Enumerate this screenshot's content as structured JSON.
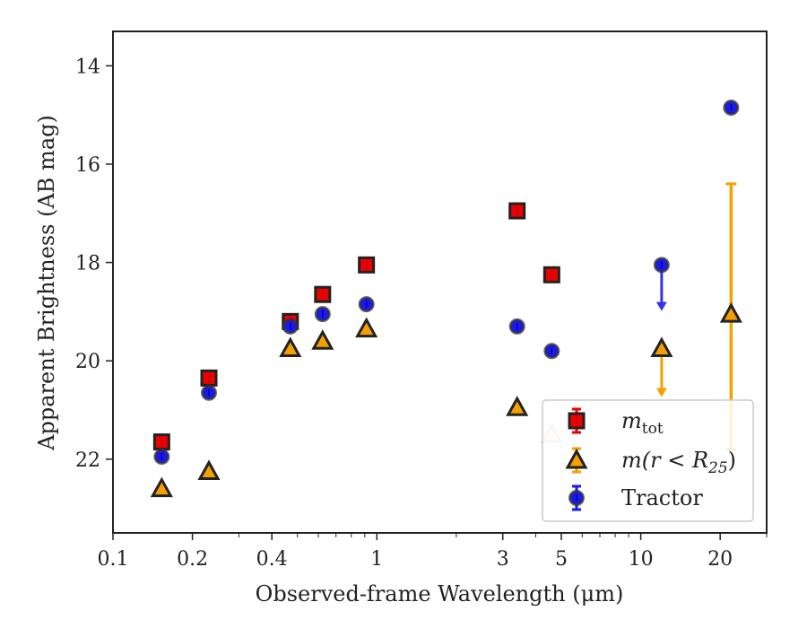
{
  "chart_data": {
    "type": "scatter",
    "xlabel": "Observed-frame Wavelength (μm)",
    "ylabel": "Apparent Brightness (AB mag)",
    "x_scale": "log",
    "xlim": [
      0.1,
      30
    ],
    "ylim": [
      23.5,
      13.3
    ],
    "y_inverted": true,
    "x_ticks": [
      0.1,
      0.2,
      0.4,
      1,
      3,
      5,
      10,
      20
    ],
    "x_tick_labels": [
      "0.1",
      "0.2",
      "0.4",
      "1",
      "3",
      "5",
      "10",
      "20"
    ],
    "y_ticks": [
      14,
      16,
      18,
      20,
      22
    ],
    "y_tick_labels": [
      "14",
      "16",
      "18",
      "20",
      "22"
    ],
    "legend_position": "lower-right",
    "series": [
      {
        "key": "mtot",
        "name": "m_tot",
        "marker": "square",
        "color": "#ee0000",
        "edgecolor": "#222222",
        "x": [
          0.153,
          0.231,
          0.47,
          0.623,
          0.913,
          3.4,
          4.6
        ],
        "y": [
          21.65,
          20.35,
          19.2,
          18.65,
          18.05,
          16.95,
          18.25
        ]
      },
      {
        "key": "mr25",
        "name": "m(r < R_25)",
        "marker": "triangle",
        "color": "#f5a000",
        "edgecolor": "#222222",
        "x": [
          0.153,
          0.231,
          0.47,
          0.623,
          0.913,
          3.4,
          4.6
        ],
        "y": [
          22.6,
          22.25,
          19.75,
          19.6,
          19.35,
          20.95,
          21.5
        ],
        "faded": [
          false,
          false,
          false,
          false,
          false,
          false,
          true
        ],
        "upper_limit": {
          "x": 12.0,
          "y": 19.75,
          "arrow_to": 20.7
        },
        "errorbar_point": {
          "x": 22.0,
          "y": 19.05,
          "low": 16.4,
          "high": 21.8
        }
      },
      {
        "key": "tractor",
        "name": "Tractor",
        "marker": "circle",
        "color": "#1a1aee",
        "edgecolor": "#333333",
        "x": [
          0.153,
          0.231,
          0.47,
          0.623,
          0.913,
          3.4,
          4.6,
          22.0
        ],
        "y": [
          21.95,
          20.65,
          19.3,
          19.05,
          18.85,
          19.3,
          19.8,
          14.85
        ],
        "upper_limit": {
          "x": 12.0,
          "y": 18.05,
          "arrow_to": 18.95
        }
      }
    ],
    "legend": [
      {
        "key": "mtot",
        "label_main": "m",
        "label_sub": "tot",
        "label_tail": ""
      },
      {
        "key": "mr25",
        "label_main": "m(r < R",
        "label_sub": "25",
        "label_tail": ")"
      },
      {
        "key": "tractor",
        "label_main": "Tractor",
        "label_sub": "",
        "label_tail": ""
      }
    ]
  }
}
